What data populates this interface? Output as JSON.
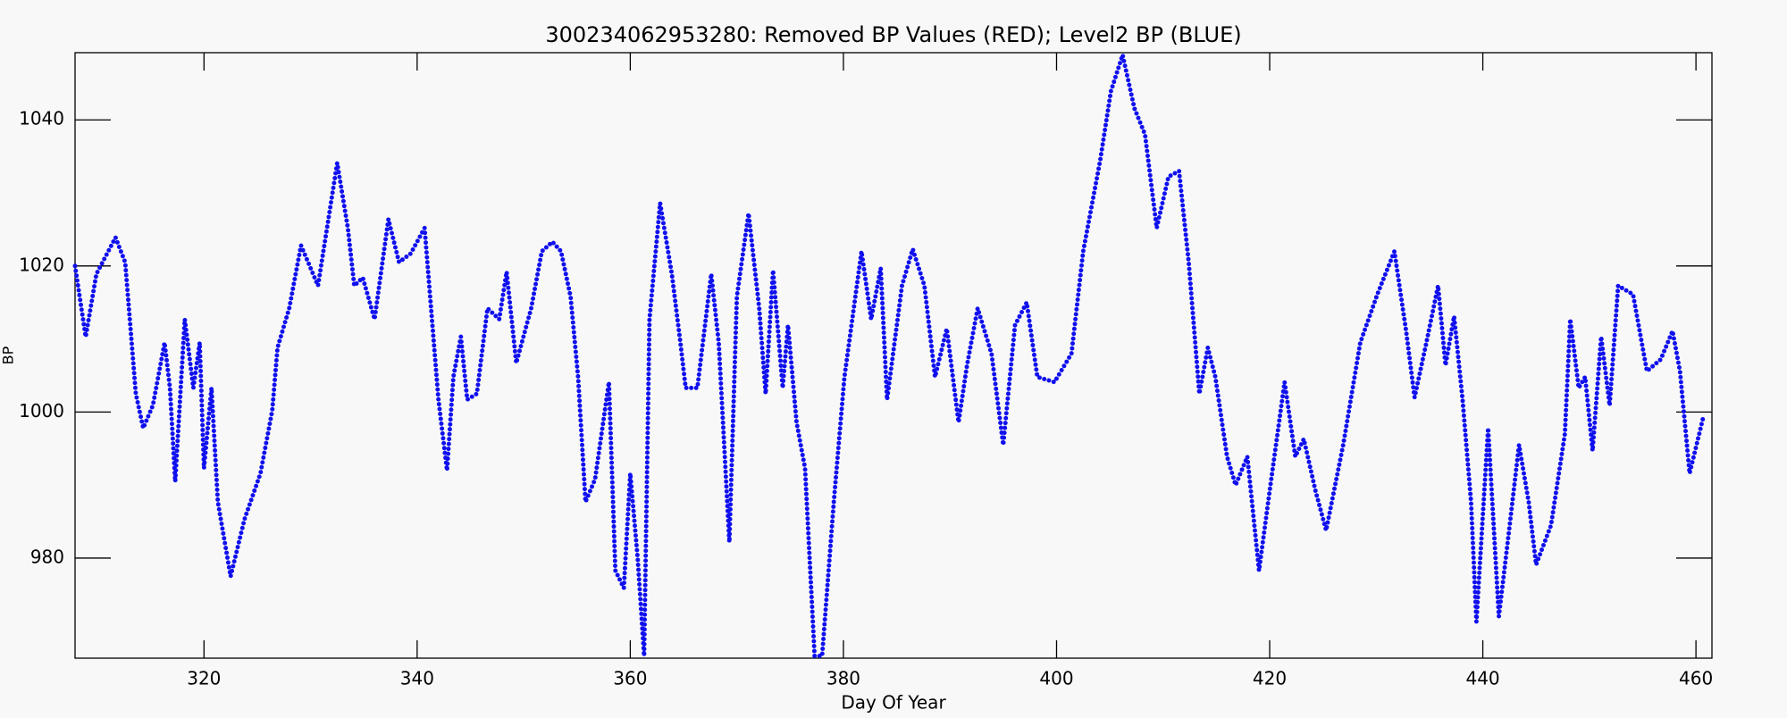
{
  "chart_data": {
    "type": "line",
    "title": "300234062953280: Removed BP Values (RED); Level2 BP (BLUE)",
    "x_label": "Day Of Year",
    "y_label": "BP",
    "xlim": [
      307.9,
      461.5
    ],
    "ylim": [
      966.3,
      1049.2
    ],
    "xticks": [
      320,
      340,
      360,
      380,
      400,
      420,
      440,
      460
    ],
    "yticks": [
      980,
      1000,
      1020,
      1040
    ],
    "color": "#1010ee",
    "x": [
      307.9,
      308.9,
      309.9,
      311.7,
      312.6,
      313.6,
      314.3,
      315.2,
      316.3,
      316.8,
      317.3,
      318.2,
      319.0,
      319.6,
      320.0,
      320.7,
      321.3,
      322.5,
      323.8,
      325.3,
      326.4,
      326.9,
      328.0,
      329.1,
      330.7,
      332.5,
      333.5,
      334.1,
      334.9,
      336.0,
      337.3,
      338.3,
      339.4,
      340.7,
      342.0,
      342.8,
      343.4,
      344.1,
      344.7,
      345.6,
      346.6,
      347.7,
      348.4,
      349.3,
      350.7,
      351.7,
      352.7,
      353.5,
      354.4,
      355.1,
      355.8,
      356.7,
      358.0,
      358.6,
      359.4,
      360.0,
      360.7,
      361.3,
      361.8,
      362.8,
      363.9,
      364.7,
      365.2,
      366.3,
      367.6,
      368.3,
      369.3,
      370.0,
      371.1,
      372.1,
      372.7,
      373.4,
      374.3,
      374.8,
      375.6,
      376.4,
      377.3,
      378.0,
      379.1,
      380.1,
      381.7,
      382.6,
      383.5,
      384.1,
      385.5,
      386.5,
      387.6,
      388.6,
      389.7,
      390.8,
      391.6,
      392.6,
      393.9,
      395.0,
      396.1,
      397.2,
      398.2,
      399.8,
      401.4,
      402.5,
      404.1,
      405.1,
      406.2,
      407.3,
      408.3,
      409.4,
      410.5,
      411.5,
      412.4,
      413.4,
      414.2,
      414.9,
      416.0,
      416.8,
      417.9,
      419.0,
      420.0,
      421.4,
      422.4,
      423.2,
      424.3,
      425.3,
      426.9,
      428.5,
      430.1,
      431.7,
      432.8,
      433.6,
      434.7,
      435.8,
      436.5,
      437.3,
      438.1,
      438.9,
      439.4,
      440.5,
      441.5,
      442.4,
      443.4,
      444.3,
      445.0,
      446.4,
      447.7,
      448.2,
      449.0,
      449.6,
      450.3,
      451.1,
      451.9,
      452.7,
      454.1,
      455.4,
      456.7,
      457.8,
      458.5,
      459.4,
      460.7
    ],
    "values": [
      1020,
      1010.3,
      1018.9,
      1023.9,
      1020.5,
      1002.5,
      997.8,
      1000.9,
      1009.5,
      1003.3,
      990.5,
      1012.7,
      1003.3,
      1009.5,
      992.3,
      1003.3,
      987.7,
      977.5,
      985.3,
      991.6,
      1000.2,
      1008.8,
      1014.2,
      1022.8,
      1017.3,
      1034.1,
      1025.2,
      1017.3,
      1018.4,
      1012.7,
      1026.4,
      1020.5,
      1021.7,
      1025.2,
      1001.7,
      992,
      1004.8,
      1010.3,
      1001.7,
      1002.5,
      1014.2,
      1012.7,
      1019.2,
      1006.7,
      1014.2,
      1022,
      1023.3,
      1022,
      1015.8,
      1004.8,
      987.7,
      990.8,
      1004.1,
      978.3,
      975.9,
      991.6,
      979.8,
      966.6,
      1012.7,
      1028.6,
      1018.9,
      1009.5,
      1003.3,
      1003.3,
      1018.9,
      1009.5,
      982.2,
      1015.8,
      1027.2,
      1014.2,
      1002.5,
      1019.4,
      1003.3,
      1011.9,
      998.6,
      992.3,
      966.6,
      966.6,
      987.7,
      1004.8,
      1022,
      1012.7,
      1019.7,
      1001.7,
      1017.3,
      1022.3,
      1017.3,
      1004.8,
      1011.4,
      998.6,
      1006.4,
      1014.2,
      1008,
      995.5,
      1011.9,
      1015,
      1004.8,
      1004.1,
      1008,
      1022,
      1034.5,
      1043.9,
      1048.9,
      1041.6,
      1038,
      1025.2,
      1032.2,
      1033,
      1020.5,
      1002.5,
      1008.8,
      1004.8,
      993.9,
      990,
      993.9,
      978.3,
      989.2,
      1004.1,
      993.9,
      996.3,
      989.2,
      983.8,
      995.5,
      1009.5,
      1016.1,
      1022,
      1011.1,
      1002,
      1009.5,
      1017.3,
      1006.4,
      1013.1,
      1001.7,
      987.7,
      971.3,
      997.8,
      972,
      983,
      995.5,
      987.7,
      979.1,
      984.5,
      997,
      1012.7,
      1003.3,
      1004.8,
      994.7,
      1010.3,
      1000.9,
      1017.3,
      1016.1,
      1005.6,
      1007.2,
      1011.1,
      1005.6,
      991.6,
      999.4
    ]
  }
}
